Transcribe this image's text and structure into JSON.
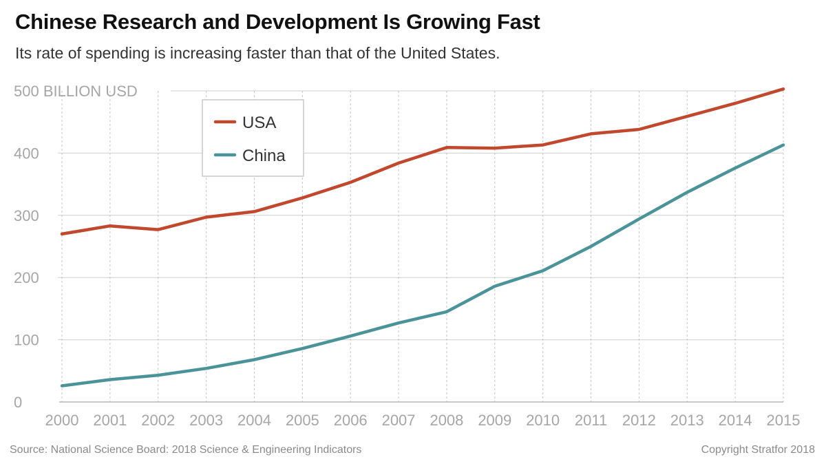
{
  "header": {
    "title": "Chinese Research and Development Is Growing Fast",
    "subtitle": "Its rate of spending is increasing faster than that of the United States."
  },
  "footer": {
    "source": "Source: National Science Board: 2018 Science & Engineering Indicators",
    "copyright": "Copyright Stratfor 2018"
  },
  "chart_data": {
    "type": "line",
    "title": "Chinese Research and Development Is Growing Fast",
    "subtitle": "Its rate of spending is increasing faster than that of the United States.",
    "xlabel": "",
    "ylabel": "",
    "x": [
      "2000",
      "2001",
      "2002",
      "2003",
      "2004",
      "2005",
      "2006",
      "2007",
      "2008",
      "2009",
      "2010",
      "2011",
      "2012",
      "2013",
      "2014",
      "2015"
    ],
    "y_ticks": [
      0,
      100,
      200,
      300,
      400,
      500
    ],
    "y_tick_labels": [
      "0",
      "100",
      "200",
      "300",
      "400",
      "500 BILLION USD"
    ],
    "ylim": [
      0,
      500
    ],
    "grid": true,
    "legend_position": "top-left",
    "series": [
      {
        "name": "USA",
        "color": "#c1472d",
        "values": [
          270,
          283,
          277,
          297,
          306,
          328,
          353,
          384,
          409,
          408,
          413,
          431,
          438,
          459,
          480,
          503
        ]
      },
      {
        "name": "China",
        "color": "#4a9399",
        "values": [
          26,
          36,
          43,
          54,
          68,
          86,
          106,
          127,
          145,
          186,
          211,
          250,
          294,
          337,
          376,
          413
        ]
      }
    ]
  }
}
